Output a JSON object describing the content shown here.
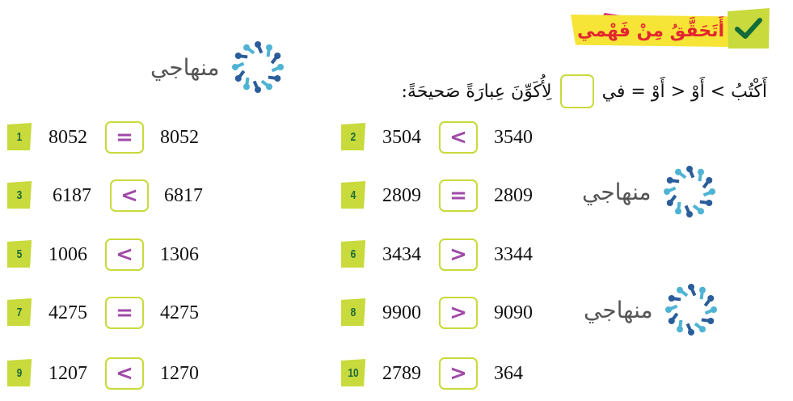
{
  "header": {
    "title": "أَتَحَقَّقُ مِنْ فَهْمي",
    "instruction_before": "أَكْتُبُ > أَوْ < أَوْ = في",
    "instruction_after": "لِأُكَوِّنَ عِبارَةً صَحيحَةً:"
  },
  "watermark": "منهاجي",
  "colors": {
    "badge": "#c8da3c",
    "symbol": "#a04aa8",
    "title": "#e3262f",
    "banner": "#f6e437"
  },
  "items": [
    {
      "n": "1",
      "a": "8052",
      "s": "=",
      "b": "8052"
    },
    {
      "n": "2",
      "a": "3504",
      "s": "<",
      "b": "3540"
    },
    {
      "n": "3",
      "a": "6187",
      "s": "<",
      "b": "6817"
    },
    {
      "n": "4",
      "a": "2809",
      "s": "=",
      "b": "2809"
    },
    {
      "n": "5",
      "a": "1006",
      "s": "<",
      "b": "1306"
    },
    {
      "n": "6",
      "a": "3434",
      "s": ">",
      "b": "3344"
    },
    {
      "n": "7",
      "a": "4275",
      "s": "=",
      "b": "4275"
    },
    {
      "n": "8",
      "a": "9900",
      "s": ">",
      "b": "9090"
    },
    {
      "n": "9",
      "a": "1207",
      "s": "<",
      "b": "1270"
    },
    {
      "n": "10",
      "a": "2789",
      "s": ">",
      "b": "364"
    }
  ]
}
